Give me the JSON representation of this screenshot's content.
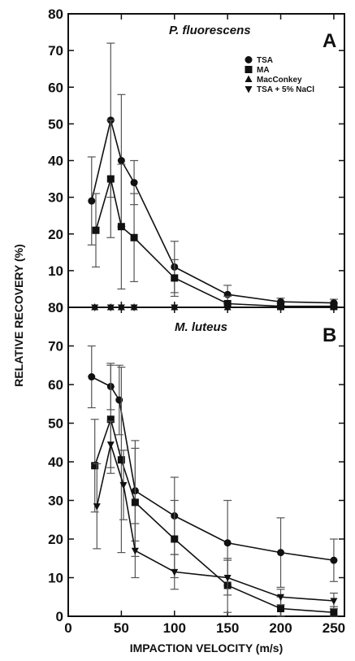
{
  "colors": {
    "ink": "#111111",
    "errorbar": "#555555",
    "background": "#ffffff"
  },
  "chart_data": [
    {
      "panel": "A",
      "type": "line",
      "title": "P. fluorescens",
      "xlabel": "IMPACTION VELOCITY (m/s)",
      "ylabel": "RELATIVE RECOVERY (%)",
      "xlim": [
        0,
        260
      ],
      "ylim": [
        0,
        80
      ],
      "xticks": [
        0,
        50,
        100,
        150,
        200,
        250
      ],
      "yticks": [
        0,
        10,
        20,
        30,
        40,
        50,
        60,
        70,
        80
      ],
      "legend_position": "top-right",
      "series": [
        {
          "name": "TSA",
          "marker": "circle",
          "connected": true,
          "x": [
            22,
            40,
            50,
            62,
            100,
            150,
            200,
            250
          ],
          "y": [
            29,
            51,
            40,
            34,
            11,
            3.5,
            1.5,
            1.2
          ],
          "err": [
            12,
            21,
            18,
            6,
            7,
            2.5,
            1,
            1
          ]
        },
        {
          "name": "MA",
          "marker": "square",
          "connected": true,
          "x": [
            26,
            40,
            50,
            62,
            100,
            150,
            200,
            250
          ],
          "y": [
            21,
            35,
            22,
            19,
            8,
            1,
            0.3,
            0.3
          ],
          "err": [
            10,
            16,
            17,
            12,
            5,
            2,
            0.8,
            0.8
          ]
        },
        {
          "name": "MacConkey",
          "marker": "triangle",
          "connected": false,
          "x": [
            25,
            40,
            50,
            62,
            100,
            150,
            200,
            250
          ],
          "y": [
            0,
            0,
            0,
            0,
            0,
            0,
            0,
            0
          ],
          "err": [
            0,
            0,
            0,
            0,
            0,
            0,
            0,
            0
          ]
        },
        {
          "name": "TSA + 5% NaCl",
          "marker": "triangle-down",
          "connected": false,
          "x": [
            25,
            40,
            50,
            62,
            100,
            150,
            200,
            250
          ],
          "y": [
            0,
            0,
            0,
            0,
            0,
            0,
            0,
            0
          ],
          "err": [
            0,
            0,
            0,
            0,
            0,
            0,
            0,
            0
          ]
        }
      ]
    },
    {
      "panel": "B",
      "type": "line",
      "title": "M. luteus",
      "xlabel": "IMPACTION VELOCITY (m/s)",
      "ylabel": "RELATIVE RECOVERY (%)",
      "xlim": [
        0,
        260
      ],
      "ylim": [
        0,
        80
      ],
      "xticks": [
        0,
        50,
        100,
        150,
        200,
        250
      ],
      "yticks": [
        0,
        10,
        20,
        30,
        40,
        50,
        60,
        70,
        80
      ],
      "series": [
        {
          "name": "TSA",
          "marker": "circle",
          "connected": true,
          "x": [
            22,
            40,
            48,
            63,
            100,
            150,
            200,
            250
          ],
          "y": [
            62,
            59.5,
            56,
            32.5,
            26,
            19,
            16.5,
            14.5
          ],
          "err": [
            8,
            6,
            9,
            13,
            10,
            11,
            9,
            5.5
          ]
        },
        {
          "name": "MA",
          "marker": "square",
          "connected": true,
          "x": [
            25,
            40,
            50,
            63,
            100,
            150,
            200,
            250
          ],
          "y": [
            39,
            51,
            40.5,
            29.5,
            20,
            8,
            2,
            1
          ],
          "err": [
            12,
            14,
            24,
            14,
            10,
            7,
            3,
            1.5
          ]
        },
        {
          "name": "TSA + 5% NaCl",
          "marker": "triangle-down",
          "connected": true,
          "x": [
            27,
            40,
            52,
            63,
            100,
            150,
            200,
            250
          ],
          "y": [
            28.5,
            44.5,
            34,
            17,
            11.5,
            10,
            5,
            4
          ],
          "err": [
            11,
            6,
            9,
            7,
            4.5,
            4.5,
            2,
            2
          ]
        }
      ]
    }
  ]
}
